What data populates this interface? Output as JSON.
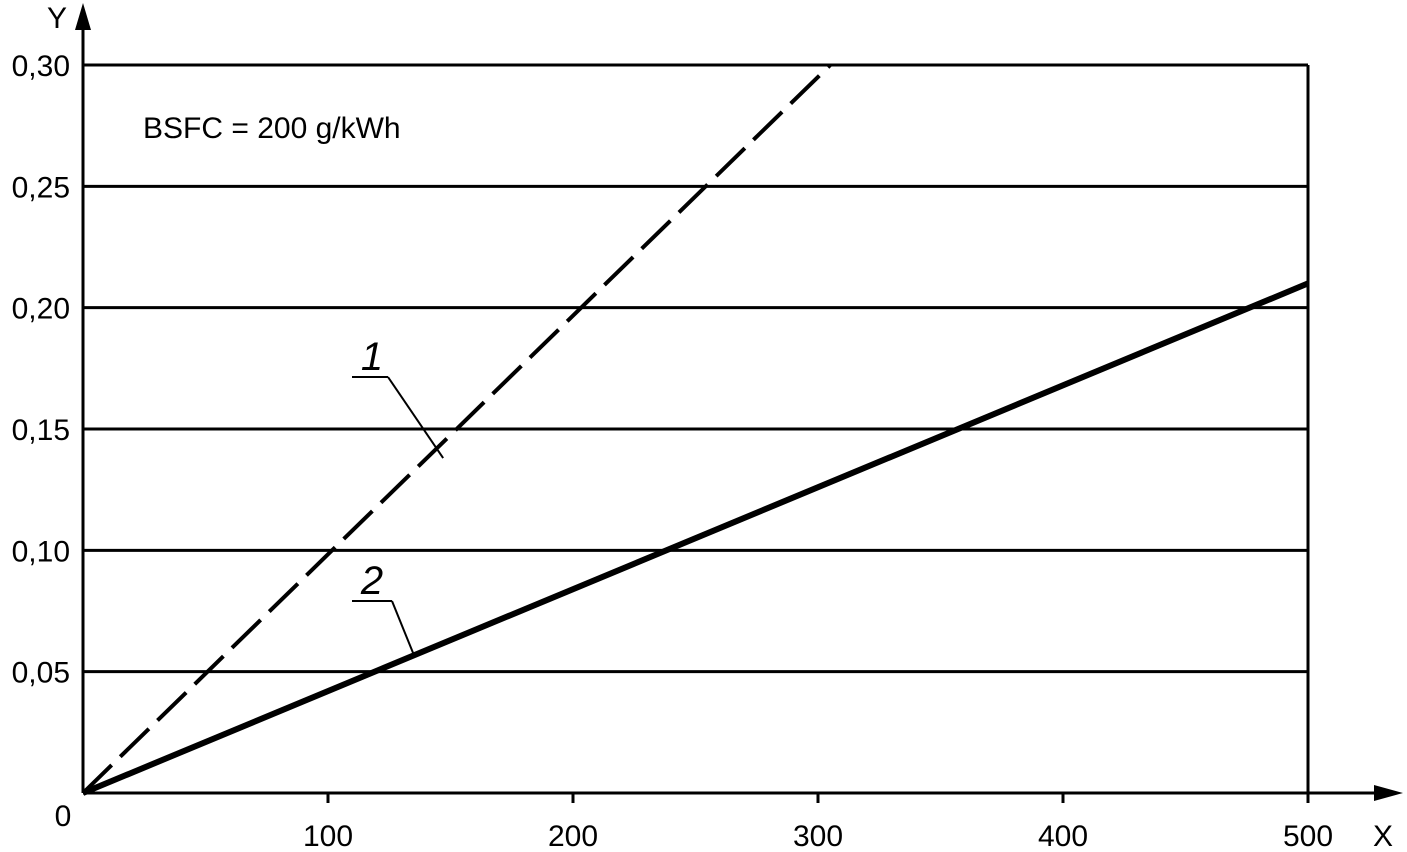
{
  "chart_data": {
    "type": "line",
    "title": "",
    "xlabel": "X",
    "ylabel": "Y",
    "origin_label": "0",
    "xlim": [
      0,
      500
    ],
    "ylim": [
      0,
      0.3
    ],
    "x_ticks": [
      {
        "value": 100,
        "label": "100"
      },
      {
        "value": 200,
        "label": "200"
      },
      {
        "value": 300,
        "label": "300"
      },
      {
        "value": 400,
        "label": "400"
      },
      {
        "value": 500,
        "label": "500"
      }
    ],
    "y_ticks": [
      {
        "value": 0.05,
        "label": "0,05"
      },
      {
        "value": 0.1,
        "label": "0,10"
      },
      {
        "value": 0.15,
        "label": "0,15"
      },
      {
        "value": 0.2,
        "label": "0,20"
      },
      {
        "value": 0.25,
        "label": "0,25"
      },
      {
        "value": 0.3,
        "label": "0,30"
      }
    ],
    "grid": "horizontal",
    "annotation": "BSFC = 200 g/kWh",
    "series": [
      {
        "label": "1",
        "style": "dashed",
        "points": [
          [
            0,
            0
          ],
          [
            305,
            0.3
          ]
        ],
        "label_anchor": [
          147,
          0.138
        ]
      },
      {
        "label": "2",
        "style": "solid",
        "points": [
          [
            0,
            0
          ],
          [
            500,
            0.21
          ]
        ],
        "label_anchor": [
          135,
          0.057
        ]
      }
    ]
  }
}
